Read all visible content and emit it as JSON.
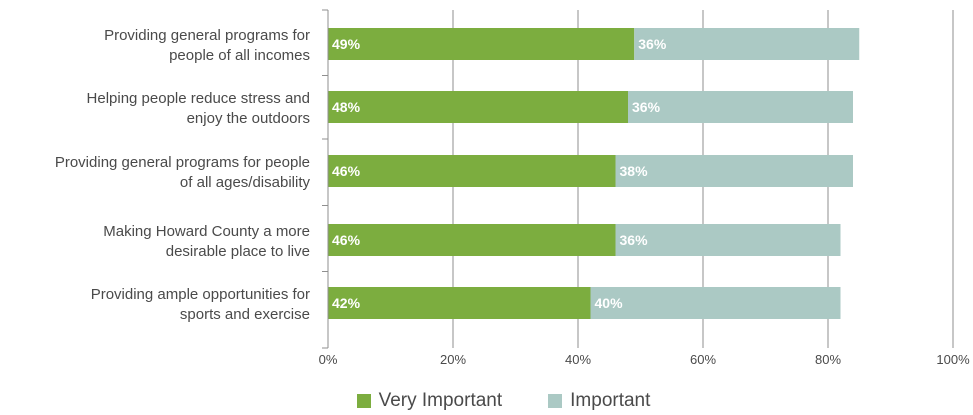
{
  "chart_data": {
    "type": "bar",
    "orientation": "horizontal",
    "stacked": true,
    "categories": [
      [
        "Providing general programs for",
        "people of all incomes"
      ],
      [
        "Helping people reduce stress and",
        "enjoy the outdoors"
      ],
      [
        "Providing general programs for people",
        "of all ages/disability"
      ],
      [
        "Making Howard County a more",
        "desirable place to live"
      ],
      [
        "Providing ample opportunities for",
        "sports and exercise"
      ]
    ],
    "series": [
      {
        "name": "Very Important",
        "color": "#7cad3f",
        "values": [
          49,
          48,
          46,
          46,
          42
        ],
        "labels": [
          "49%",
          "48%",
          "46%",
          "46%",
          "42%"
        ]
      },
      {
        "name": "Important",
        "color": "#abc9c4",
        "values": [
          36,
          36,
          38,
          36,
          40
        ],
        "labels": [
          "36%",
          "36%",
          "38%",
          "36%",
          "40%"
        ]
      }
    ],
    "xlim": [
      0,
      100
    ],
    "ticks": [
      0,
      20,
      40,
      60,
      80,
      100
    ],
    "tick_labels": [
      "0%",
      "20%",
      "40%",
      "60%",
      "80%",
      "100%"
    ],
    "grid": true,
    "legend_position": "bottom"
  }
}
